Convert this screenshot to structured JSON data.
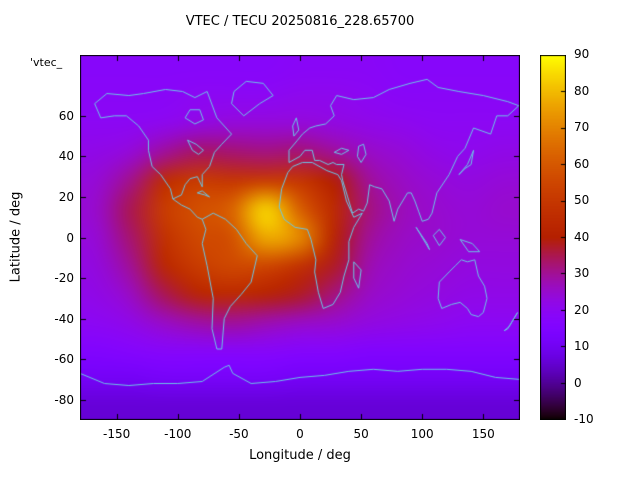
{
  "annotation": "'vtec_",
  "chart_data": {
    "type": "heatmap",
    "title": "VTEC / TECU 20250816_228.65700",
    "xlabel": "Longitude / deg",
    "ylabel": "Latitude / deg",
    "xlim": [
      -180,
      180
    ],
    "ylim": [
      -90,
      90
    ],
    "xticks": [
      -150,
      -100,
      -50,
      0,
      50,
      100,
      150
    ],
    "yticks": [
      60,
      40,
      20,
      0,
      -20,
      -40,
      -60,
      -80
    ],
    "grid": "off",
    "legend": "none",
    "coastline_color": "#6cc5e6",
    "colorbar": {
      "min": -10,
      "max": 90,
      "ticks": [
        90,
        80,
        70,
        60,
        50,
        40,
        30,
        20,
        10,
        0,
        -10
      ],
      "palette": "pm3d-black-blue-purple-red-yellow"
    },
    "grid_lons": [
      -180,
      -150,
      -120,
      -90,
      -60,
      -30,
      0,
      30,
      60,
      90,
      120,
      150,
      180
    ],
    "grid_lats": [
      90,
      75,
      60,
      45,
      30,
      15,
      0,
      -15,
      -30,
      -45,
      -60,
      -75,
      -90
    ],
    "values": [
      [
        18,
        18,
        18,
        18,
        18,
        18,
        19,
        19,
        19,
        18,
        18,
        18,
        18
      ],
      [
        19,
        19,
        19,
        20,
        20,
        20,
        21,
        21,
        20,
        19,
        19,
        19,
        19
      ],
      [
        20,
        20,
        21,
        23,
        24,
        24,
        24,
        23,
        22,
        21,
        20,
        20,
        20
      ],
      [
        22,
        24,
        30,
        34,
        33,
        32,
        33,
        30,
        26,
        24,
        22,
        21,
        22
      ],
      [
        24,
        31,
        46,
        52,
        50,
        52,
        50,
        40,
        30,
        26,
        24,
        23,
        24
      ],
      [
        25,
        35,
        52,
        58,
        63,
        85,
        62,
        45,
        32,
        27,
        25,
        24,
        25
      ],
      [
        24,
        33,
        48,
        56,
        58,
        78,
        72,
        42,
        30,
        26,
        25,
        24,
        24
      ],
      [
        23,
        30,
        44,
        52,
        56,
        55,
        48,
        38,
        28,
        25,
        24,
        23,
        23
      ],
      [
        22,
        26,
        35,
        43,
        45,
        42,
        38,
        32,
        26,
        24,
        23,
        22,
        22
      ],
      [
        20,
        22,
        26,
        29,
        30,
        28,
        26,
        25,
        23,
        22,
        21,
        20,
        20
      ],
      [
        16,
        17,
        18,
        18,
        18,
        18,
        17,
        17,
        16,
        16,
        16,
        16,
        16
      ],
      [
        11,
        11,
        12,
        12,
        12,
        12,
        11,
        11,
        11,
        11,
        11,
        11,
        11
      ],
      [
        6,
        6,
        6,
        6,
        6,
        6,
        6,
        6,
        6,
        6,
        6,
        6,
        6
      ]
    ],
    "map_outlines": [
      [
        [
          -168,
          66
        ],
        [
          -158,
          71
        ],
        [
          -140,
          70
        ],
        [
          -128,
          71
        ],
        [
          -110,
          73
        ],
        [
          -96,
          72
        ],
        [
          -86,
          69
        ],
        [
          -76,
          72
        ],
        [
          -68,
          59
        ],
        [
          -56,
          51
        ],
        [
          -64,
          46
        ],
        [
          -70,
          42
        ],
        [
          -74,
          35
        ],
        [
          -80,
          31
        ],
        [
          -80,
          25
        ],
        [
          -84,
          30
        ],
        [
          -90,
          29
        ],
        [
          -94,
          26
        ],
        [
          -97,
          21
        ],
        [
          -104,
          19
        ],
        [
          -106,
          24
        ],
        [
          -114,
          31
        ],
        [
          -121,
          35
        ],
        [
          -124,
          43
        ],
        [
          -124,
          48
        ],
        [
          -132,
          55
        ],
        [
          -142,
          60
        ],
        [
          -152,
          60
        ],
        [
          -163,
          59
        ],
        [
          -168,
          66
        ]
      ],
      [
        [
          -104,
          19
        ],
        [
          -97,
          16
        ],
        [
          -90,
          14
        ],
        [
          -84,
          10
        ],
        [
          -80,
          9
        ]
      ],
      [
        [
          -80,
          9
        ],
        [
          -77,
          4
        ],
        [
          -80,
          -3
        ],
        [
          -76,
          -14
        ],
        [
          -71,
          -30
        ],
        [
          -72,
          -45
        ],
        [
          -68,
          -55
        ],
        [
          -64,
          -55
        ],
        [
          -62,
          -40
        ],
        [
          -57,
          -34
        ],
        [
          -48,
          -28
        ],
        [
          -40,
          -22
        ],
        [
          -35,
          -9
        ],
        [
          -44,
          -3
        ],
        [
          -52,
          4
        ],
        [
          -61,
          9
        ],
        [
          -71,
          12
        ],
        [
          -80,
          9
        ]
      ],
      [
        [
          -46,
          60
        ],
        [
          -56,
          66
        ],
        [
          -54,
          72
        ],
        [
          -44,
          77
        ],
        [
          -30,
          76
        ],
        [
          -22,
          70
        ],
        [
          -33,
          66
        ],
        [
          -46,
          60
        ]
      ],
      [
        [
          -6,
          35
        ],
        [
          -10,
          32
        ],
        [
          -15,
          24
        ],
        [
          -17,
          15
        ],
        [
          -13,
          9
        ],
        [
          -4,
          5
        ],
        [
          6,
          4
        ],
        [
          9,
          -1
        ],
        [
          13,
          -11
        ],
        [
          12,
          -17
        ],
        [
          15,
          -27
        ],
        [
          19,
          -35
        ],
        [
          27,
          -33
        ],
        [
          33,
          -27
        ],
        [
          36,
          -19
        ],
        [
          40,
          -11
        ],
        [
          40,
          -2
        ],
        [
          44,
          5
        ],
        [
          51,
          12
        ],
        [
          44,
          10
        ],
        [
          38,
          18
        ],
        [
          34,
          28
        ],
        [
          31,
          31
        ],
        [
          22,
          33
        ],
        [
          10,
          37
        ],
        [
          2,
          37
        ],
        [
          -6,
          35
        ]
      ],
      [
        [
          44,
          -12
        ],
        [
          50,
          -16
        ],
        [
          48,
          -25
        ],
        [
          44,
          -20
        ],
        [
          44,
          -12
        ]
      ],
      [
        [
          -9,
          37
        ],
        [
          -9,
          43
        ],
        [
          -2,
          48
        ],
        [
          2,
          51
        ],
        [
          8,
          54
        ],
        [
          13,
          55
        ],
        [
          21,
          56
        ],
        [
          28,
          60
        ],
        [
          25,
          65
        ],
        [
          30,
          70
        ],
        [
          44,
          68
        ],
        [
          60,
          69
        ],
        [
          73,
          73
        ],
        [
          90,
          76
        ],
        [
          104,
          78
        ],
        [
          113,
          74
        ],
        [
          130,
          72
        ],
        [
          150,
          70
        ],
        [
          170,
          67
        ],
        [
          179,
          65
        ],
        [
          170,
          60
        ],
        [
          161,
          60
        ],
        [
          156,
          51
        ],
        [
          142,
          54
        ],
        [
          135,
          44
        ],
        [
          129,
          40
        ],
        [
          122,
          31
        ],
        [
          112,
          22
        ],
        [
          108,
          12
        ],
        [
          105,
          9
        ],
        [
          100,
          8
        ],
        [
          97,
          13
        ],
        [
          94,
          18
        ],
        [
          91,
          22
        ],
        [
          88,
          22
        ],
        [
          80,
          14
        ],
        [
          77,
          8
        ],
        [
          73,
          18
        ],
        [
          67,
          24
        ],
        [
          61,
          25
        ],
        [
          57,
          26
        ],
        [
          55,
          17
        ],
        [
          52,
          13
        ],
        [
          48,
          14
        ],
        [
          43,
          12
        ],
        [
          39,
          20
        ],
        [
          35,
          28
        ],
        [
          34,
          31
        ],
        [
          36,
          36
        ],
        [
          30,
          36
        ],
        [
          27,
          37
        ],
        [
          23,
          36
        ],
        [
          16,
          38
        ],
        [
          12,
          38
        ],
        [
          10,
          43
        ],
        [
          4,
          43
        ],
        [
          0,
          40
        ],
        [
          -9,
          37
        ]
      ],
      [
        [
          -5,
          50
        ],
        [
          -6,
          55
        ],
        [
          -3,
          59
        ],
        [
          -1,
          53
        ],
        [
          -5,
          50
        ]
      ],
      [
        [
          130,
          31
        ],
        [
          135,
          34
        ],
        [
          140,
          36
        ],
        [
          142,
          43
        ],
        [
          137,
          36
        ],
        [
          130,
          31
        ]
      ],
      [
        [
          95,
          5
        ],
        [
          104,
          -3
        ],
        [
          106,
          -6
        ],
        [
          98,
          2
        ],
        [
          95,
          5
        ]
      ],
      [
        [
          109,
          1
        ],
        [
          114,
          4
        ],
        [
          119,
          0
        ],
        [
          114,
          -4
        ],
        [
          109,
          1
        ]
      ],
      [
        [
          131,
          -1
        ],
        [
          141,
          -3
        ],
        [
          147,
          -7
        ],
        [
          138,
          -7
        ],
        [
          131,
          -1
        ]
      ],
      [
        [
          114,
          -22
        ],
        [
          113,
          -30
        ],
        [
          116,
          -35
        ],
        [
          124,
          -33
        ],
        [
          131,
          -32
        ],
        [
          137,
          -35
        ],
        [
          140,
          -38
        ],
        [
          146,
          -39
        ],
        [
          150,
          -37
        ],
        [
          153,
          -30
        ],
        [
          151,
          -24
        ],
        [
          146,
          -19
        ],
        [
          143,
          -11
        ],
        [
          137,
          -12
        ],
        [
          132,
          -11
        ],
        [
          127,
          -14
        ],
        [
          122,
          -17
        ],
        [
          114,
          -22
        ]
      ],
      [
        [
          167,
          -46
        ],
        [
          171,
          -44
        ],
        [
          174,
          -41
        ],
        [
          178,
          -37
        ],
        [
          175,
          -40
        ],
        [
          170,
          -45
        ],
        [
          167,
          -46
        ]
      ],
      [
        [
          -180,
          -67
        ],
        [
          -160,
          -72
        ],
        [
          -140,
          -73
        ],
        [
          -120,
          -72
        ],
        [
          -100,
          -72
        ],
        [
          -80,
          -71
        ],
        [
          -62,
          -64
        ],
        [
          -58,
          -63
        ],
        [
          -55,
          -67
        ],
        [
          -40,
          -72
        ],
        [
          -20,
          -71
        ],
        [
          0,
          -69
        ],
        [
          20,
          -68
        ],
        [
          40,
          -66
        ],
        [
          60,
          -65
        ],
        [
          80,
          -66
        ],
        [
          100,
          -65
        ],
        [
          120,
          -65
        ],
        [
          140,
          -66
        ],
        [
          160,
          -69
        ],
        [
          180,
          -70
        ]
      ],
      [
        [
          50,
          37
        ],
        [
          54,
          41
        ],
        [
          52,
          46
        ],
        [
          48,
          45
        ],
        [
          47,
          40
        ],
        [
          50,
          37
        ]
      ],
      [
        [
          -92,
          48
        ],
        [
          -85,
          46
        ],
        [
          -79,
          43
        ],
        [
          -83,
          41
        ],
        [
          -88,
          43
        ],
        [
          -92,
          48
        ]
      ],
      [
        [
          -94,
          59
        ],
        [
          -86,
          56
        ],
        [
          -79,
          58
        ],
        [
          -82,
          63
        ],
        [
          -90,
          63
        ],
        [
          -94,
          59
        ]
      ],
      [
        [
          -84,
          22
        ],
        [
          -78,
          21
        ],
        [
          -74,
          20
        ],
        [
          -80,
          23
        ],
        [
          -84,
          22
        ]
      ],
      [
        [
          28,
          42
        ],
        [
          34,
          44
        ],
        [
          40,
          43
        ],
        [
          34,
          41
        ],
        [
          28,
          42
        ]
      ]
    ]
  }
}
